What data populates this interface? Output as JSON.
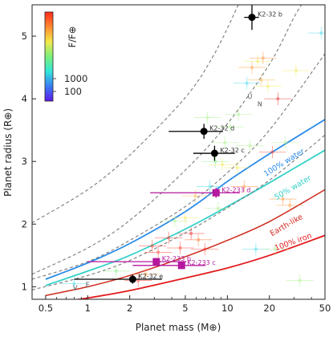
{
  "chart_data": {
    "type": "scatter",
    "xlabel": "Planet mass (M⊕)",
    "ylabel": "Planet radius (R⊕)",
    "xscale": "log",
    "xlim": [
      0.4,
      50
    ],
    "ylim": [
      0.8,
      5.5
    ],
    "xticks": [
      0.5,
      1,
      2,
      5,
      10,
      20,
      50
    ],
    "yticks": [
      1,
      2,
      3,
      4,
      5
    ],
    "grid": false,
    "colorbar": {
      "label": "F/F⊕",
      "ticks": [
        "1000",
        "100"
      ],
      "colors": [
        "#ff2a1a",
        "#ff8a30",
        "#f4e84a",
        "#7cf07a",
        "#32e6d8",
        "#3a7cf4",
        "#5a1ae8"
      ]
    },
    "highlighted_planets": [
      {
        "name": "K2-32 b",
        "mass": 15.0,
        "radius": 5.3,
        "xerr": 1.8,
        "yerr": 0.2,
        "color": "#000000",
        "marker": "circle"
      },
      {
        "name": "K2-32 d",
        "mass": 6.8,
        "radius": 3.48,
        "xerr_low": 3.0,
        "xerr_high": 2.5,
        "yerr": 0.12,
        "color": "#000000",
        "marker": "circle"
      },
      {
        "name": "K2-32 c",
        "mass": 8.1,
        "radius": 3.13,
        "xerr_low": 2.4,
        "xerr_high": 3.2,
        "yerr": 0.12,
        "color": "#000000",
        "marker": "circle"
      },
      {
        "name": "K2-32 e",
        "mass": 2.1,
        "radius": 1.12,
        "xerr_low": 1.3,
        "xerr_high": 1.3,
        "yerr": 0.07,
        "color": "#000000",
        "marker": "circle"
      },
      {
        "name": "K2-233 d",
        "mass": 8.3,
        "radius": 2.5,
        "xerr_low": 5.5,
        "xerr_high": 4.0,
        "yerr": 0.08,
        "color": "#b5179e",
        "marker": "square"
      },
      {
        "name": "K2-233 b",
        "mass": 3.1,
        "radius": 1.4,
        "xerr_low": 2.1,
        "xerr_high": 2.0,
        "yerr": 0.06,
        "color": "#b5179e",
        "marker": "square"
      },
      {
        "name": "K2-233 c",
        "mass": 4.7,
        "radius": 1.34,
        "xerr_low": 2.6,
        "xerr_high": 2.3,
        "yerr": 0.06,
        "color": "#b5179e",
        "marker": "square"
      }
    ],
    "solar_system": [
      {
        "name": "V",
        "mass": 0.815,
        "radius": 0.95
      },
      {
        "name": "E",
        "mass": 1.0,
        "radius": 1.0
      },
      {
        "name": "U",
        "mass": 14.5,
        "radius": 4.0
      },
      {
        "name": "N",
        "mass": 17.1,
        "radius": 3.88
      }
    ],
    "models": [
      {
        "name": "100% water",
        "color": "#2b8ce8",
        "width": 1.8,
        "dashed": false,
        "points": [
          [
            0.5,
            1.12
          ],
          [
            1,
            1.38
          ],
          [
            2,
            1.69
          ],
          [
            5,
            2.2
          ],
          [
            10,
            2.68
          ],
          [
            20,
            3.12
          ],
          [
            50,
            3.67
          ]
        ]
      },
      {
        "name": "50% water",
        "color": "#34d1c9",
        "width": 1.8,
        "dashed": false,
        "points": [
          [
            0.5,
            1.02
          ],
          [
            1,
            1.25
          ],
          [
            2,
            1.5
          ],
          [
            5,
            1.92
          ],
          [
            10,
            2.28
          ],
          [
            20,
            2.66
          ],
          [
            50,
            3.18
          ]
        ]
      },
      {
        "name": "Earth-like",
        "color": "#cf2a1d",
        "width": 1.5,
        "dashed": false,
        "points": [
          [
            0.5,
            0.86
          ],
          [
            1,
            1.0
          ],
          [
            2,
            1.18
          ],
          [
            5,
            1.48
          ],
          [
            10,
            1.74
          ],
          [
            20,
            2.04
          ],
          [
            50,
            2.55
          ]
        ]
      },
      {
        "name": "100% iron",
        "color": "#e41a1c",
        "width": 1.8,
        "dashed": false,
        "points": [
          [
            0.5,
            0.72
          ],
          [
            1,
            0.82
          ],
          [
            2,
            0.94
          ],
          [
            5,
            1.14
          ],
          [
            10,
            1.3
          ],
          [
            20,
            1.5
          ],
          [
            50,
            1.82
          ]
        ]
      },
      {
        "name": "",
        "color": "#7a7a7a",
        "width": 1.1,
        "dashed": true,
        "points": [
          [
            0.4,
            2.02
          ],
          [
            1,
            2.55
          ],
          [
            2,
            3.1
          ],
          [
            5,
            4.02
          ],
          [
            8,
            4.7
          ],
          [
            12,
            5.5
          ]
        ]
      },
      {
        "name": "",
        "color": "#7a7a7a",
        "width": 1.1,
        "dashed": true,
        "points": [
          [
            0.4,
            1.2
          ],
          [
            1,
            1.62
          ],
          [
            2,
            2.06
          ],
          [
            5,
            2.86
          ],
          [
            10,
            3.6
          ],
          [
            20,
            4.55
          ],
          [
            30,
            5.3
          ],
          [
            34,
            5.5
          ]
        ]
      },
      {
        "name": "",
        "color": "#7a7a7a",
        "width": 1.1,
        "dashed": true,
        "points": [
          [
            0.4,
            1.12
          ],
          [
            1,
            1.4
          ],
          [
            2,
            1.74
          ],
          [
            5,
            2.28
          ],
          [
            10,
            2.82
          ],
          [
            20,
            3.5
          ],
          [
            50,
            4.72
          ]
        ]
      },
      {
        "name": "",
        "color": "#7a7a7a",
        "width": 1.1,
        "dashed": true,
        "points": [
          [
            0.4,
            0.95
          ],
          [
            1,
            1.18
          ],
          [
            2,
            1.42
          ],
          [
            5,
            1.86
          ],
          [
            10,
            2.26
          ],
          [
            20,
            2.7
          ],
          [
            50,
            3.42
          ]
        ]
      }
    ],
    "background_planets": [
      {
        "mass": 0.8,
        "radius": 1.05,
        "color": "#3ad8e8"
      },
      {
        "mass": 1.6,
        "radius": 1.25,
        "color": "#7cf07a"
      },
      {
        "mass": 2.3,
        "radius": 1.1,
        "color": "#ff3a2a"
      },
      {
        "mass": 2.6,
        "radius": 1.2,
        "color": "#ff9a3a"
      },
      {
        "mass": 2.9,
        "radius": 1.65,
        "color": "#ff2a1a"
      },
      {
        "mass": 3.2,
        "radius": 1.55,
        "color": "#ff3a2a"
      },
      {
        "mass": 3.8,
        "radius": 1.78,
        "color": "#ff2a1a"
      },
      {
        "mass": 4.6,
        "radius": 1.62,
        "color": "#ff2a1a"
      },
      {
        "mass": 4.2,
        "radius": 2.05,
        "color": "#a8f08a"
      },
      {
        "mass": 5.0,
        "radius": 2.1,
        "color": "#f4e84a"
      },
      {
        "mass": 5.5,
        "radius": 1.85,
        "color": "#e41a1c"
      },
      {
        "mass": 5.9,
        "radius": 2.45,
        "color": "#f4b84a"
      },
      {
        "mass": 6.2,
        "radius": 1.75,
        "color": "#ff6a2a"
      },
      {
        "mass": 6.9,
        "radius": 1.6,
        "color": "#ff3a2a"
      },
      {
        "mass": 7.5,
        "radius": 2.6,
        "color": "#3ad8e8"
      },
      {
        "mass": 7.2,
        "radius": 3.7,
        "color": "#a8f08a"
      },
      {
        "mass": 8.6,
        "radius": 2.25,
        "color": "#a8f08a"
      },
      {
        "mass": 8.2,
        "radius": 3.0,
        "color": "#7cf07a"
      },
      {
        "mass": 9.2,
        "radius": 2.95,
        "color": "#f4e84a"
      },
      {
        "mass": 9.6,
        "radius": 3.3,
        "color": "#a8f08a"
      },
      {
        "mass": 10.5,
        "radius": 3.55,
        "color": "#a8f08a"
      },
      {
        "mass": 11.8,
        "radius": 2.9,
        "color": "#f4e84a"
      },
      {
        "mass": 12.0,
        "radius": 3.75,
        "color": "#a8f08a"
      },
      {
        "mass": 13.2,
        "radius": 2.6,
        "color": "#ff8a30"
      },
      {
        "mass": 13.8,
        "radius": 4.25,
        "color": "#3ad8e8"
      },
      {
        "mass": 14.5,
        "radius": 3.25,
        "color": "#a8f08a"
      },
      {
        "mass": 15.0,
        "radius": 4.5,
        "color": "#ff9a3a"
      },
      {
        "mass": 16.5,
        "radius": 4.6,
        "color": "#f4e84a"
      },
      {
        "mass": 17.5,
        "radius": 4.3,
        "color": "#f4b84a"
      },
      {
        "mass": 18.0,
        "radius": 4.65,
        "color": "#ff8a30"
      },
      {
        "mass": 19.5,
        "radius": 4.2,
        "color": "#f4e84a"
      },
      {
        "mass": 21.0,
        "radius": 3.15,
        "color": "#ff3a2a"
      },
      {
        "mass": 23.0,
        "radius": 4.0,
        "color": "#e41a1c"
      },
      {
        "mass": 25.0,
        "radius": 2.4,
        "color": "#ff8a30"
      },
      {
        "mass": 26.0,
        "radius": 3.3,
        "color": "#a8f08a"
      },
      {
        "mass": 28.0,
        "radius": 2.3,
        "color": "#ff9a3a"
      },
      {
        "mass": 31.0,
        "radius": 4.45,
        "color": "#f4e84a"
      },
      {
        "mass": 33.0,
        "radius": 1.1,
        "color": "#a8f08a"
      },
      {
        "mass": 16.0,
        "radius": 1.6,
        "color": "#3ad8e8"
      },
      {
        "mass": 22.0,
        "radius": 1.6,
        "color": "#a8f08a"
      },
      {
        "mass": 47.0,
        "radius": 5.05,
        "color": "#3ad8e8"
      }
    ]
  }
}
